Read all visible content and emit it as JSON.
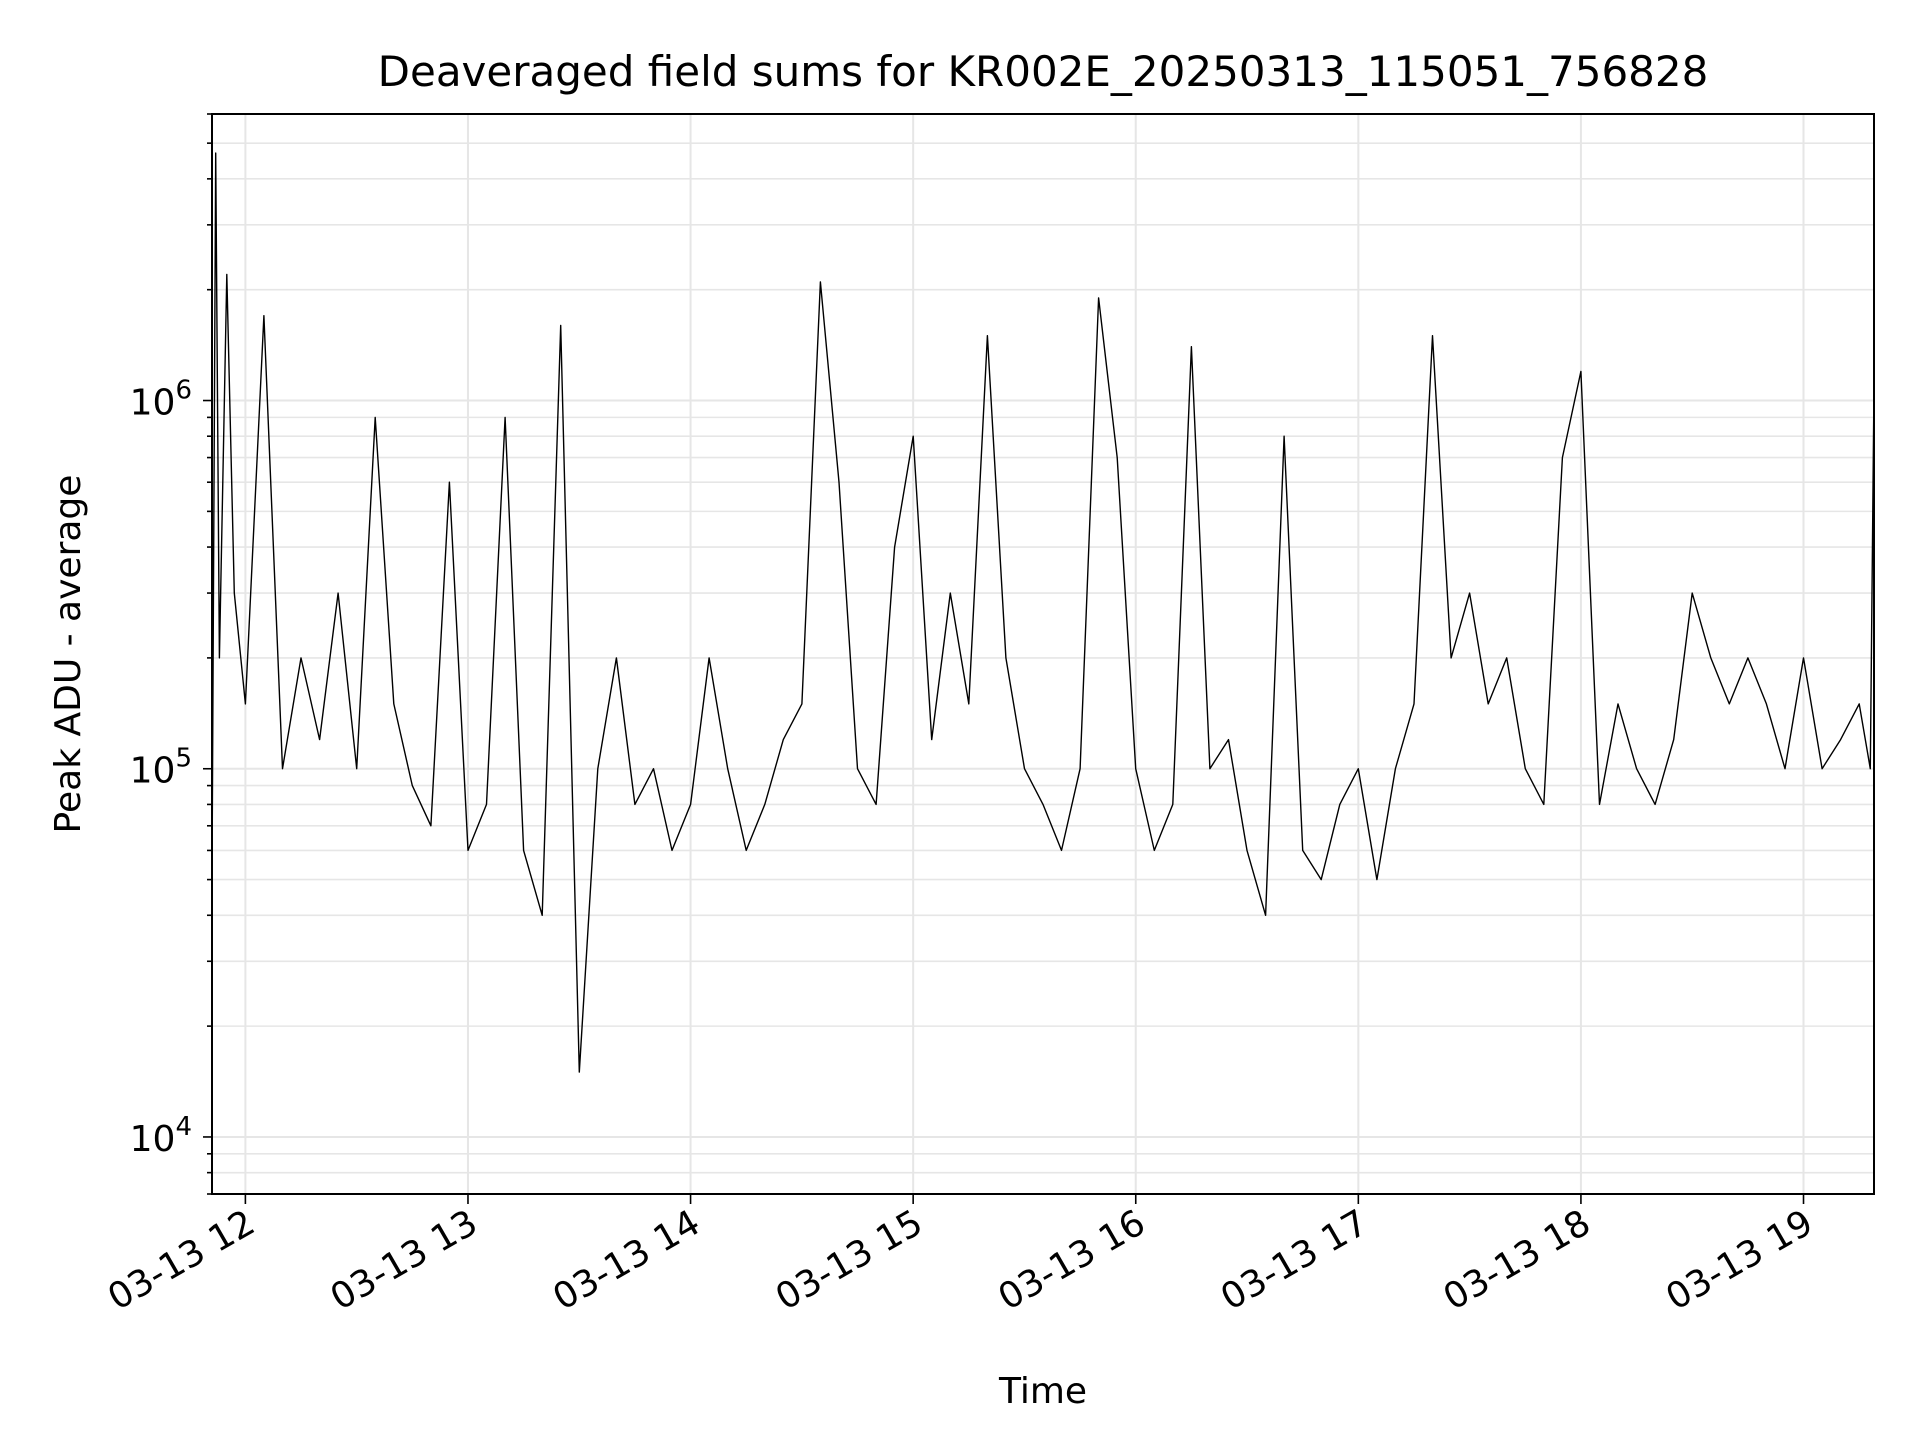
{
  "chart_data": {
    "type": "line",
    "title": "Deaveraged field sums for KR002E_20250313_115051_756828",
    "xlabel": "Time",
    "ylabel": "Peak ADU - average",
    "yscale": "log",
    "ylim": [
      7000,
      6000000
    ],
    "xlim": [
      "2025-03-13 11:51",
      "2025-03-13 19:19"
    ],
    "x_ticks": [
      {
        "t": "2025-03-13 12:00",
        "label": "03-13 12"
      },
      {
        "t": "2025-03-13 13:00",
        "label": "03-13 13"
      },
      {
        "t": "2025-03-13 14:00",
        "label": "03-13 14"
      },
      {
        "t": "2025-03-13 15:00",
        "label": "03-13 15"
      },
      {
        "t": "2025-03-13 16:00",
        "label": "03-13 16"
      },
      {
        "t": "2025-03-13 17:00",
        "label": "03-13 17"
      },
      {
        "t": "2025-03-13 18:00",
        "label": "03-13 18"
      },
      {
        "t": "2025-03-13 19:00",
        "label": "03-13 19"
      }
    ],
    "y_ticks": [
      {
        "value": 10000,
        "base": "10",
        "exp": "4"
      },
      {
        "value": 100000,
        "base": "10",
        "exp": "5"
      },
      {
        "value": 1000000,
        "base": "10",
        "exp": "6"
      }
    ],
    "grid": true,
    "line_color": "#000000",
    "series": [
      {
        "x": [
          "2025-03-13 11:51",
          "2025-03-13 11:52",
          "2025-03-13 11:53",
          "2025-03-13 11:55",
          "2025-03-13 11:57",
          "2025-03-13 12:00",
          "2025-03-13 12:05",
          "2025-03-13 12:10",
          "2025-03-13 12:15",
          "2025-03-13 12:20",
          "2025-03-13 12:25",
          "2025-03-13 12:30",
          "2025-03-13 12:35",
          "2025-03-13 12:40",
          "2025-03-13 12:45",
          "2025-03-13 12:50",
          "2025-03-13 12:55",
          "2025-03-13 13:00",
          "2025-03-13 13:05",
          "2025-03-13 13:10",
          "2025-03-13 13:15",
          "2025-03-13 13:20",
          "2025-03-13 13:25",
          "2025-03-13 13:30",
          "2025-03-13 13:35",
          "2025-03-13 13:40",
          "2025-03-13 13:45",
          "2025-03-13 13:50",
          "2025-03-13 13:55",
          "2025-03-13 14:00",
          "2025-03-13 14:05",
          "2025-03-13 14:10",
          "2025-03-13 14:15",
          "2025-03-13 14:20",
          "2025-03-13 14:25",
          "2025-03-13 14:30",
          "2025-03-13 14:35",
          "2025-03-13 14:40",
          "2025-03-13 14:45",
          "2025-03-13 14:50",
          "2025-03-13 14:55",
          "2025-03-13 15:00",
          "2025-03-13 15:05",
          "2025-03-13 15:10",
          "2025-03-13 15:15",
          "2025-03-13 15:20",
          "2025-03-13 15:25",
          "2025-03-13 15:30",
          "2025-03-13 15:35",
          "2025-03-13 15:40",
          "2025-03-13 15:45",
          "2025-03-13 15:50",
          "2025-03-13 15:55",
          "2025-03-13 16:00",
          "2025-03-13 16:05",
          "2025-03-13 16:10",
          "2025-03-13 16:15",
          "2025-03-13 16:20",
          "2025-03-13 16:25",
          "2025-03-13 16:30",
          "2025-03-13 16:35",
          "2025-03-13 16:40",
          "2025-03-13 16:45",
          "2025-03-13 16:50",
          "2025-03-13 16:55",
          "2025-03-13 17:00",
          "2025-03-13 17:05",
          "2025-03-13 17:10",
          "2025-03-13 17:15",
          "2025-03-13 17:20",
          "2025-03-13 17:25",
          "2025-03-13 17:30",
          "2025-03-13 17:35",
          "2025-03-13 17:40",
          "2025-03-13 17:45",
          "2025-03-13 17:50",
          "2025-03-13 17:55",
          "2025-03-13 18:00",
          "2025-03-13 18:05",
          "2025-03-13 18:10",
          "2025-03-13 18:15",
          "2025-03-13 18:20",
          "2025-03-13 18:25",
          "2025-03-13 18:30",
          "2025-03-13 18:35",
          "2025-03-13 18:40",
          "2025-03-13 18:45",
          "2025-03-13 18:50",
          "2025-03-13 18:55",
          "2025-03-13 19:00",
          "2025-03-13 19:05",
          "2025-03-13 19:10",
          "2025-03-13 19:15",
          "2025-03-13 19:18",
          "2025-03-13 19:19"
        ],
        "y": [
          50000,
          4700000,
          200000,
          2200000,
          300000,
          150000,
          1700000,
          100000,
          200000,
          120000,
          300000,
          100000,
          900000,
          150000,
          90000,
          70000,
          600000,
          60000,
          80000,
          900000,
          60000,
          40000,
          1600000,
          15000,
          100000,
          200000,
          80000,
          100000,
          60000,
          80000,
          200000,
          100000,
          60000,
          80000,
          120000,
          150000,
          2100000,
          600000,
          100000,
          80000,
          400000,
          800000,
          120000,
          300000,
          150000,
          1500000,
          200000,
          100000,
          80000,
          60000,
          100000,
          1900000,
          700000,
          100000,
          60000,
          80000,
          1400000,
          100000,
          120000,
          60000,
          40000,
          800000,
          60000,
          50000,
          80000,
          100000,
          50000,
          100000,
          150000,
          1500000,
          200000,
          300000,
          150000,
          200000,
          100000,
          80000,
          700000,
          1200000,
          80000,
          150000,
          100000,
          80000,
          120000,
          300000,
          200000,
          150000,
          200000,
          150000,
          100000,
          200000,
          100000,
          120000,
          150000,
          100000,
          1100000
        ]
      }
    ]
  }
}
